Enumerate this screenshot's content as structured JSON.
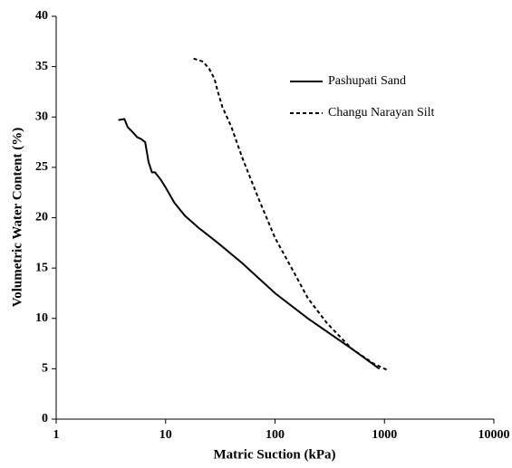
{
  "chart_data": {
    "type": "line",
    "x_label": "Matric Suction (kPa)",
    "y_label": "Volumetric Water Content (%)",
    "xscale": "log",
    "xlim": [
      1,
      10000
    ],
    "xticks": [
      1,
      10,
      100,
      1000,
      10000
    ],
    "ylim": [
      0,
      40
    ],
    "yticks": [
      0,
      5,
      10,
      15,
      20,
      25,
      30,
      35,
      40
    ],
    "grid": false,
    "legend": "upper right",
    "series": [
      {
        "name": "Pashupati Sand",
        "color": "#000000",
        "style": "solid",
        "x": [
          3.7,
          4.2,
          4.5,
          5,
          5.5,
          6,
          6.5,
          7,
          7.5,
          8,
          9,
          10,
          12,
          15,
          20,
          30,
          50,
          100,
          200,
          500,
          900
        ],
        "values": [
          29.7,
          29.8,
          29,
          28.5,
          28,
          27.8,
          27.5,
          25.5,
          24.5,
          24.5,
          23.8,
          23,
          21.5,
          20.2,
          19,
          17.5,
          15.5,
          12.5,
          10,
          7,
          5
        ]
      },
      {
        "name": "Changu Narayan Silt",
        "color": "#000000",
        "style": "dashed",
        "x": [
          18,
          22,
          25,
          28,
          30,
          33,
          40,
          50,
          70,
          100,
          150,
          200,
          300,
          500,
          800,
          1100
        ],
        "values": [
          35.8,
          35.5,
          34.8,
          33.8,
          32.5,
          31,
          29,
          26,
          22,
          18,
          14.5,
          12,
          9.5,
          7,
          5.5,
          4.8
        ]
      }
    ]
  }
}
